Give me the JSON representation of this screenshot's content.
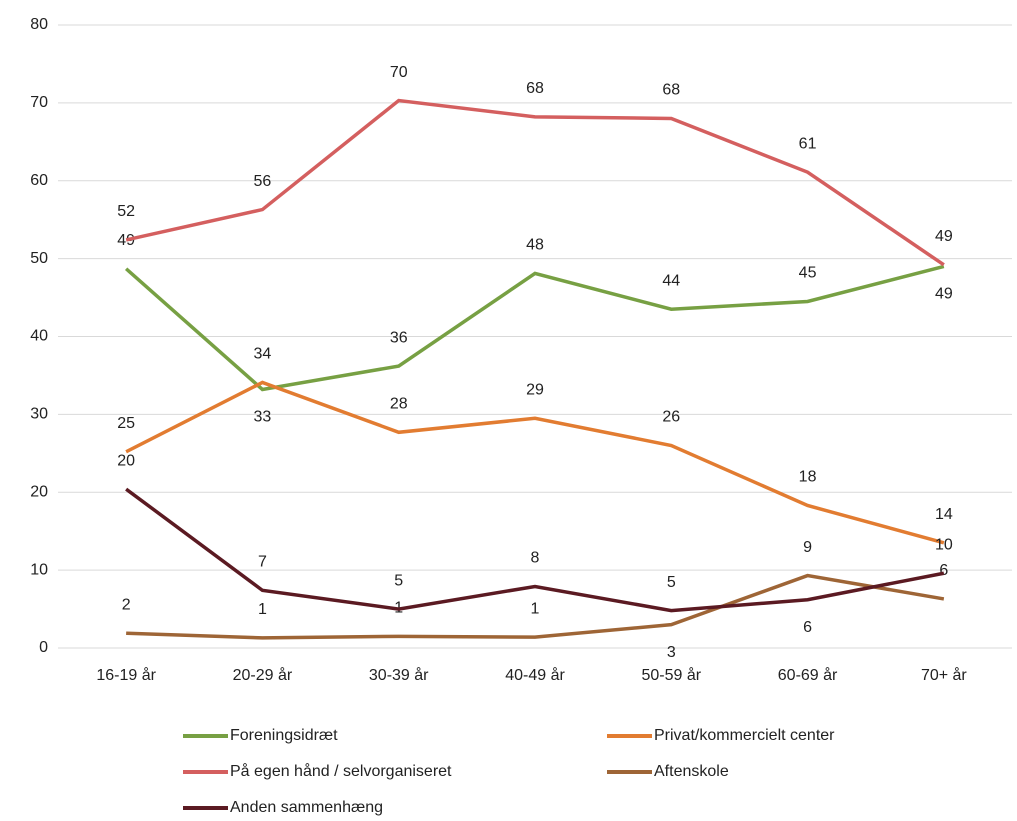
{
  "chart_data": {
    "type": "line",
    "categories": [
      "16-19 år",
      "20-29 år",
      "30-39 år",
      "40-49 år",
      "50-59 år",
      "60-69 år",
      "70+ år"
    ],
    "series": [
      {
        "name": "Foreningsidræt",
        "color": "#77a043",
        "values": [
          48.7,
          33.2,
          36.2,
          48.1,
          43.5,
          44.5,
          49.0
        ],
        "value_labels": [
          "49",
          "33",
          "36",
          "48",
          "44",
          "45",
          "49"
        ]
      },
      {
        "name": "Privat/kommercielt center",
        "color": "#e27c31",
        "values": [
          25.2,
          34.1,
          27.7,
          29.5,
          26.0,
          18.3,
          13.5
        ],
        "value_labels": [
          "25",
          "34",
          "28",
          "29",
          "26",
          "18",
          "14"
        ]
      },
      {
        "name": "På egen hånd / selvorganiseret",
        "color": "#d45f5f",
        "values": [
          52.4,
          56.3,
          70.3,
          68.2,
          68.0,
          61.1,
          49.2
        ],
        "value_labels": [
          "52",
          "56",
          "70",
          "68",
          "68",
          "61",
          "49"
        ]
      },
      {
        "name": "Aftenskole",
        "color": "#9e6536",
        "values": [
          1.9,
          1.3,
          1.5,
          1.4,
          3.0,
          9.3,
          6.3
        ],
        "value_labels": [
          "2",
          "1",
          "1",
          "1",
          "3",
          "9",
          "6"
        ]
      },
      {
        "name": "Anden sammenhæng",
        "color": "#5b1a22",
        "values": [
          20.4,
          7.4,
          5.0,
          7.9,
          4.8,
          6.2,
          9.6
        ],
        "value_labels": [
          "20",
          "7",
          "5",
          "8",
          "5",
          "6",
          "10"
        ]
      }
    ],
    "ylim": [
      0,
      80
    ],
    "yticks": [
      0,
      10,
      20,
      30,
      40,
      50,
      60,
      70,
      80
    ],
    "grid": true,
    "legend": "bottom"
  }
}
